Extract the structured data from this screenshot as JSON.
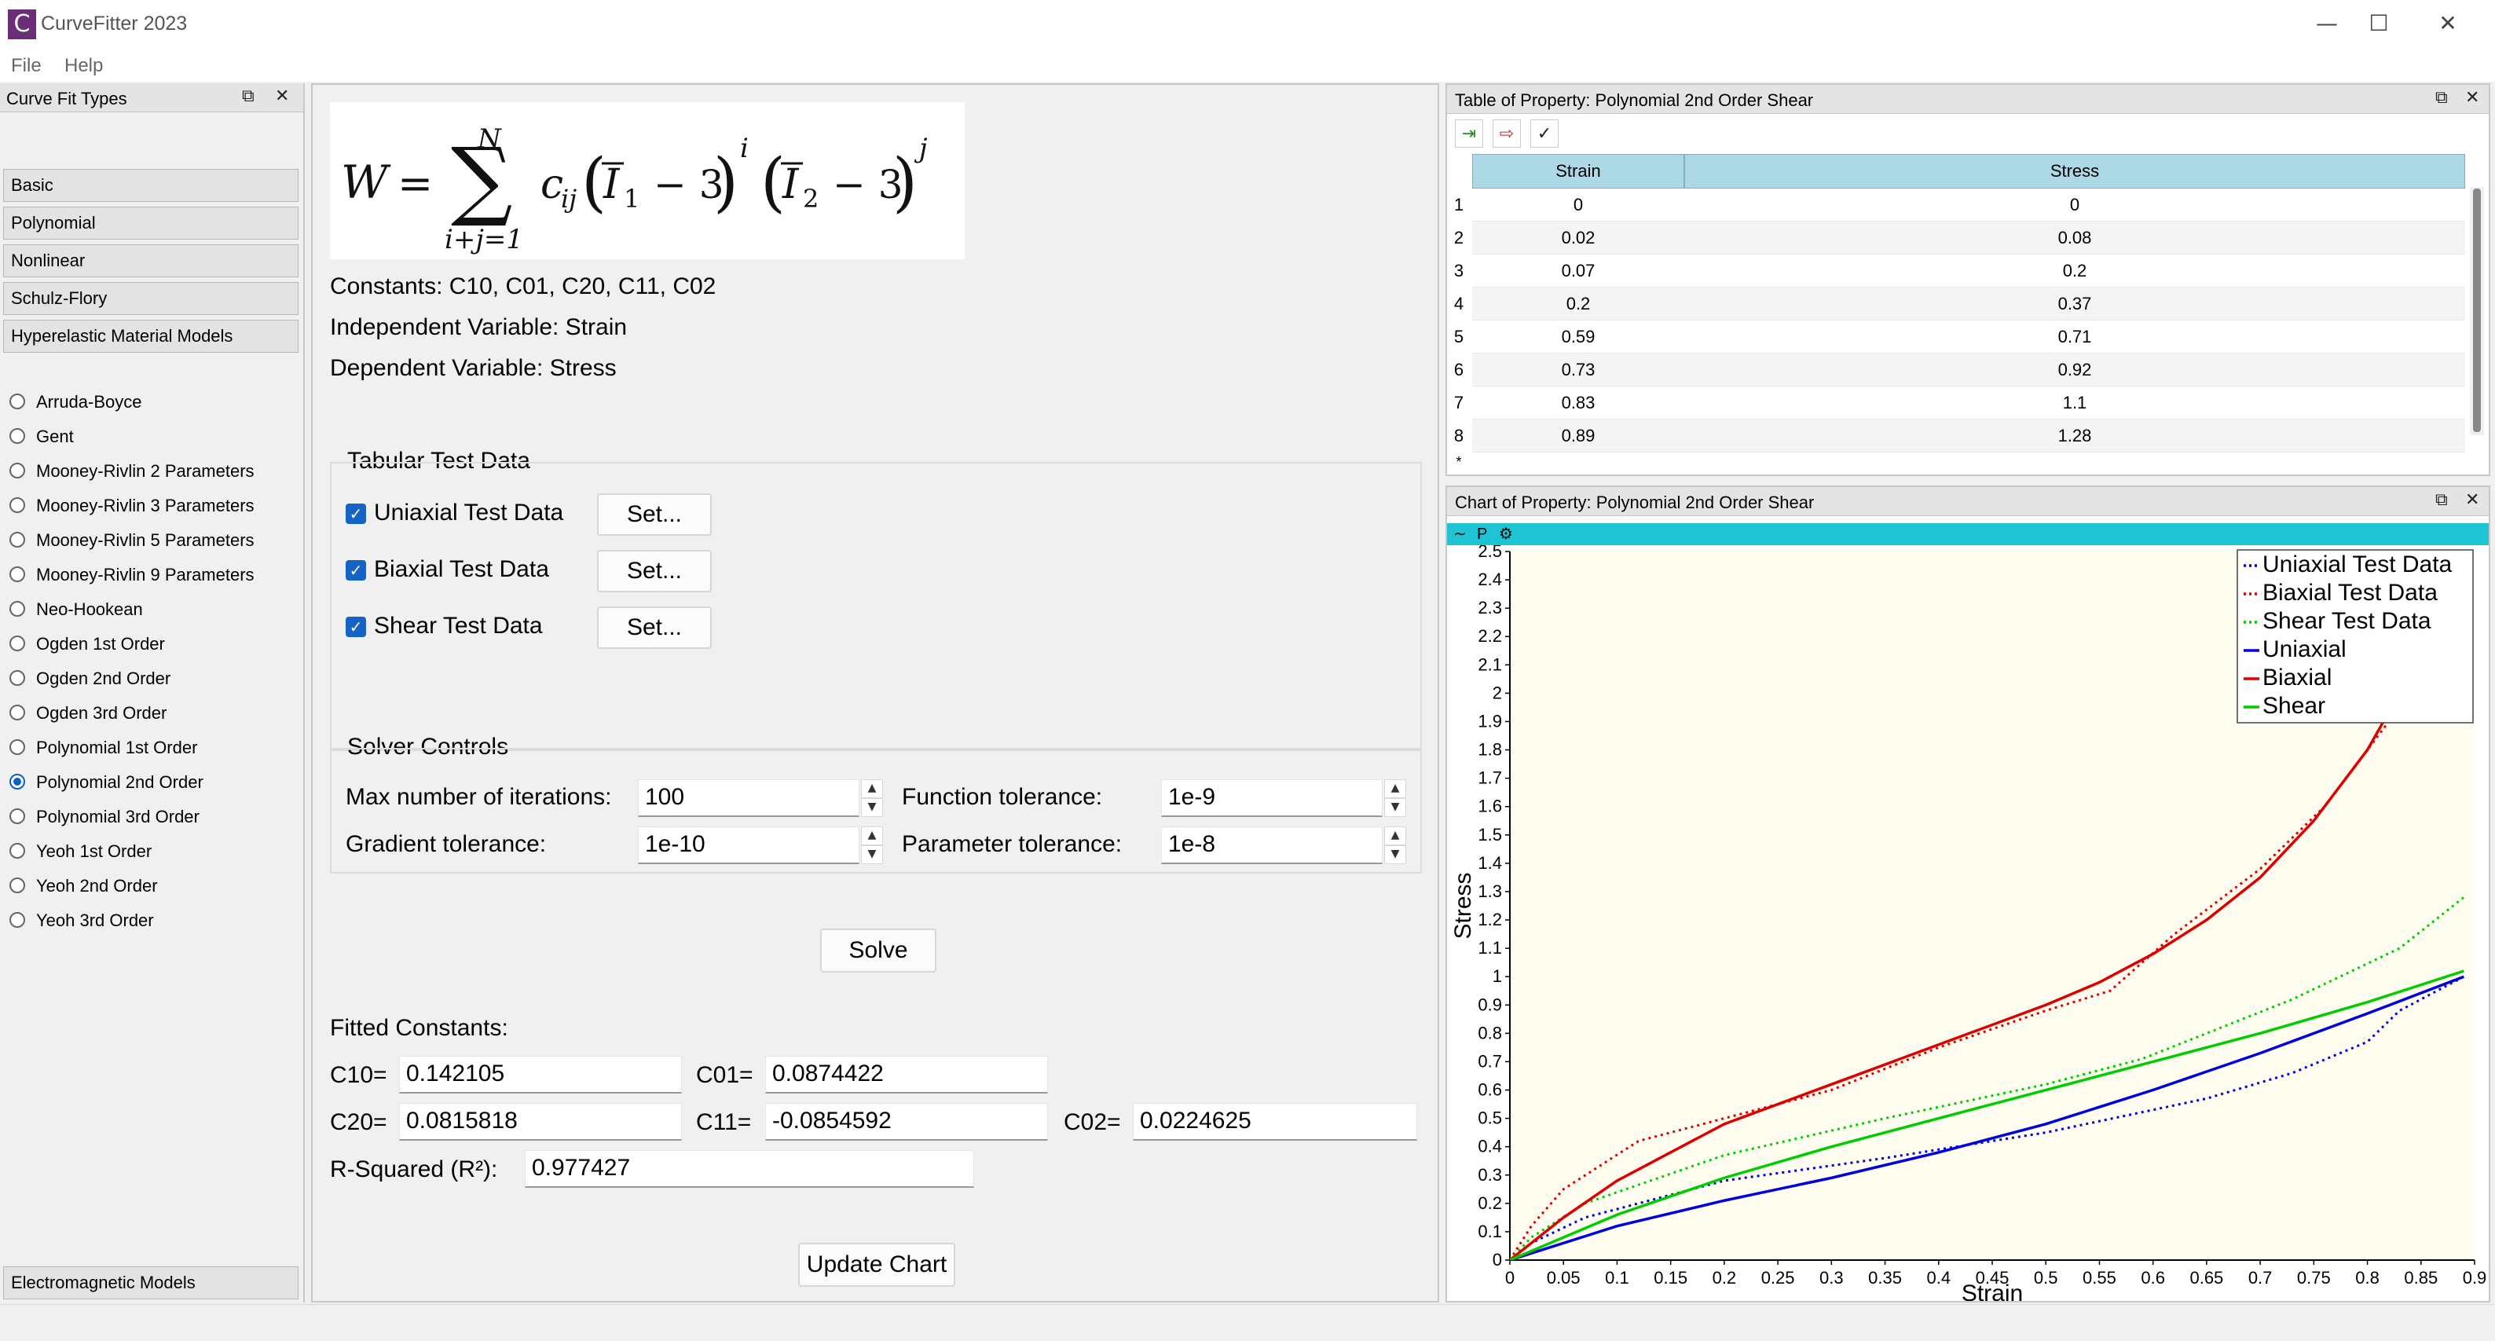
{
  "window": {
    "title": "CurveFitter 2023",
    "logo_letter": "C"
  },
  "menu": [
    "File",
    "Help"
  ],
  "left_panel": {
    "title": "Curve Fit Types",
    "categories": [
      "Basic",
      "Polynomial",
      "Nonlinear",
      "Schulz-Flory",
      "Hyperelastic Material Models"
    ],
    "models": [
      {
        "label": "Arruda-Boyce",
        "selected": false
      },
      {
        "label": "Gent",
        "selected": false
      },
      {
        "label": "Mooney-Rivlin 2 Parameters",
        "selected": false
      },
      {
        "label": "Mooney-Rivlin 3 Parameters",
        "selected": false
      },
      {
        "label": "Mooney-Rivlin 5 Parameters",
        "selected": false
      },
      {
        "label": "Mooney-Rivlin 9 Parameters",
        "selected": false
      },
      {
        "label": "Neo-Hookean",
        "selected": false
      },
      {
        "label": "Ogden 1st Order",
        "selected": false
      },
      {
        "label": "Ogden 2nd Order",
        "selected": false
      },
      {
        "label": "Ogden 3rd Order",
        "selected": false
      },
      {
        "label": "Polynomial 1st Order",
        "selected": false
      },
      {
        "label": "Polynomial 2nd Order",
        "selected": true
      },
      {
        "label": "Polynomial 3rd Order",
        "selected": false
      },
      {
        "label": "Yeoh 1st Order",
        "selected": false
      },
      {
        "label": "Yeoh 2nd Order",
        "selected": false
      },
      {
        "label": "Yeoh 3rd Order",
        "selected": false
      }
    ],
    "bottom_category": "Electromagnetic Models"
  },
  "main": {
    "constants": "Constants: C10, C01, C20, C11, C02",
    "independent": "Independent Variable: Strain",
    "dependent": "Dependent Variable: Stress",
    "tabular_title": "Tabular Test Data",
    "test_data": [
      {
        "label": "Uniaxial Test Data",
        "checked": true,
        "button": "Set..."
      },
      {
        "label": "Biaxial Test Data",
        "checked": true,
        "button": "Set..."
      },
      {
        "label": "Shear Test Data",
        "checked": true,
        "button": "Set..."
      }
    ],
    "solver_title": "Solver Controls",
    "solver": {
      "max_iter_label": "Max number of iterations:",
      "max_iter": "100",
      "func_tol_label": "Function tolerance:",
      "func_tol": "1e-9",
      "grad_tol_label": "Gradient tolerance:",
      "grad_tol": "1e-10",
      "param_tol_label": "Parameter tolerance:",
      "param_tol": "1e-8"
    },
    "solve_button": "Solve",
    "fitted_title": "Fitted Constants:",
    "fitted": {
      "c10_label": "C10=",
      "c10": "0.142105",
      "c01_label": "C01=",
      "c01": "0.0874422",
      "c20_label": "C20=",
      "c20": "0.0815818",
      "c11_label": "C11=",
      "c11": "-0.0854592",
      "c02_label": "C02=",
      "c02": "0.0224625",
      "r2_label": "R-Squared (R²):",
      "r2": "0.977427"
    },
    "update_button": "Update Chart"
  },
  "table": {
    "title": "Table of Property: Polynomial 2nd Order Shear",
    "headers": [
      "Strain",
      "Stress"
    ],
    "rows": [
      [
        "1",
        "0",
        "0"
      ],
      [
        "2",
        "0.02",
        "0.08"
      ],
      [
        "3",
        "0.07",
        "0.2"
      ],
      [
        "4",
        "0.2",
        "0.37"
      ],
      [
        "5",
        "0.59",
        "0.71"
      ],
      [
        "6",
        "0.73",
        "0.92"
      ],
      [
        "7",
        "0.83",
        "1.1"
      ],
      [
        "8",
        "0.89",
        "1.28"
      ]
    ],
    "new_row_marker": "*"
  },
  "chart_panel": {
    "title": "Chart of Property: Polynomial 2nd Order Shear",
    "toolbar_p": "P"
  },
  "chart_data": {
    "type": "line",
    "xlabel": "Strain",
    "ylabel": "Stress",
    "xlim": [
      0,
      0.9
    ],
    "ylim": [
      0,
      2.5
    ],
    "xticks": [
      "0",
      "0.05",
      "0.1",
      "0.15",
      "0.2",
      "0.25",
      "0.3",
      "0.35",
      "0.4",
      "0.45",
      "0.5",
      "0.55",
      "0.6",
      "0.65",
      "0.7",
      "0.75",
      "0.8",
      "0.85",
      "0.9"
    ],
    "yticks": [
      "0",
      "0.1",
      "0.2",
      "0.3",
      "0.4",
      "0.5",
      "0.6",
      "0.7",
      "0.8",
      "0.9",
      "1",
      "1.1",
      "1.2",
      "1.3",
      "1.4",
      "1.5",
      "1.6",
      "1.7",
      "1.8",
      "1.9",
      "2",
      "2.1",
      "2.2",
      "2.3",
      "2.4",
      "2.5"
    ],
    "legend_position": "top-right",
    "series": [
      {
        "name": "Uniaxial Test Data",
        "color": "#0000dd",
        "dotted": true,
        "x": [
          0,
          0.02,
          0.07,
          0.2,
          0.35,
          0.5,
          0.65,
          0.73,
          0.8,
          0.83,
          0.89
        ],
        "y": [
          0,
          0.06,
          0.15,
          0.28,
          0.36,
          0.45,
          0.57,
          0.66,
          0.77,
          0.88,
          1.0
        ]
      },
      {
        "name": "Biaxial Test Data",
        "color": "#dd0000",
        "dotted": true,
        "x": [
          0,
          0.02,
          0.05,
          0.12,
          0.2,
          0.3,
          0.4,
          0.5,
          0.56,
          0.62,
          0.7,
          0.76,
          0.82
        ],
        "y": [
          0,
          0.12,
          0.25,
          0.42,
          0.5,
          0.6,
          0.75,
          0.88,
          0.95,
          1.15,
          1.38,
          1.6,
          1.9
        ]
      },
      {
        "name": "Shear Test Data",
        "color": "#00cc00",
        "dotted": true,
        "x": [
          0,
          0.02,
          0.07,
          0.2,
          0.35,
          0.5,
          0.59,
          0.73,
          0.83,
          0.89
        ],
        "y": [
          0,
          0.08,
          0.2,
          0.37,
          0.5,
          0.62,
          0.71,
          0.92,
          1.1,
          1.28
        ]
      },
      {
        "name": "Uniaxial",
        "color": "#0000dd",
        "dotted": false,
        "x": [
          0,
          0.1,
          0.2,
          0.3,
          0.4,
          0.5,
          0.6,
          0.7,
          0.8,
          0.89
        ],
        "y": [
          0,
          0.12,
          0.21,
          0.29,
          0.38,
          0.48,
          0.6,
          0.73,
          0.87,
          1.0
        ]
      },
      {
        "name": "Biaxial",
        "color": "#dd0000",
        "dotted": false,
        "x": [
          0,
          0.05,
          0.1,
          0.2,
          0.3,
          0.4,
          0.5,
          0.55,
          0.6,
          0.65,
          0.7,
          0.75,
          0.8,
          0.815
        ],
        "y": [
          0,
          0.15,
          0.28,
          0.48,
          0.62,
          0.76,
          0.9,
          0.98,
          1.08,
          1.2,
          1.35,
          1.55,
          1.8,
          1.9
        ]
      },
      {
        "name": "Shear",
        "color": "#00cc00",
        "dotted": false,
        "x": [
          0,
          0.1,
          0.2,
          0.3,
          0.4,
          0.5,
          0.6,
          0.7,
          0.8,
          0.89
        ],
        "y": [
          0,
          0.16,
          0.29,
          0.4,
          0.5,
          0.6,
          0.7,
          0.8,
          0.91,
          1.02
        ]
      }
    ]
  }
}
